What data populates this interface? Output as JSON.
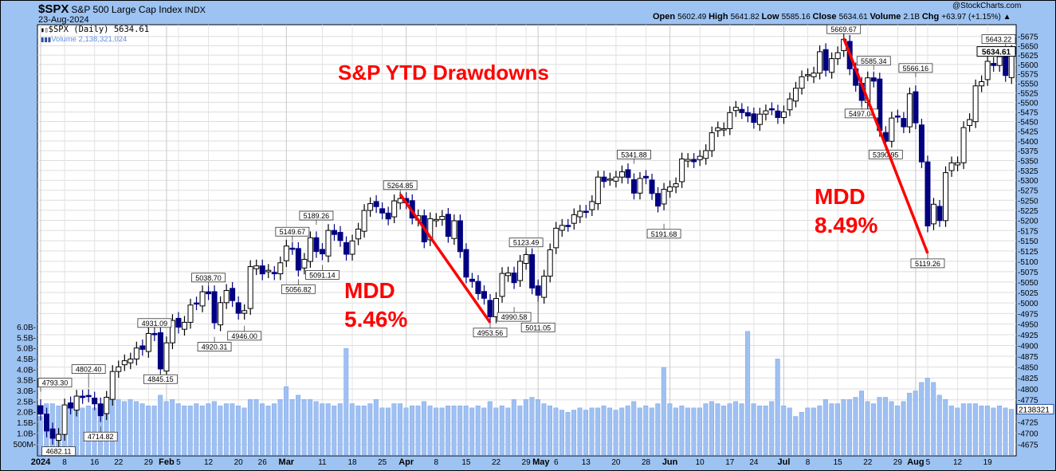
{
  "header": {
    "symbol": "$SPX",
    "name": "S&P 500 Large Cap Index",
    "exchange": "INDX",
    "date": "23-Aug-2024",
    "copyright": "@StockCharts.com",
    "ohlc_line": [
      {
        "label": "Open",
        "value": "5602.49"
      },
      {
        "label": "High",
        "value": "5641.82"
      },
      {
        "label": "Low",
        "value": "5585.16"
      },
      {
        "label": "Close",
        "value": "5634.61"
      },
      {
        "label": "Volume",
        "value": "2.1B"
      },
      {
        "label": "Chg",
        "value": "+63.97 (+1.15%) ▲"
      }
    ],
    "legend_price": "$SPX (Daily) 5634.61",
    "legend_volume": "Volume 2,138,321,024"
  },
  "chart_data": {
    "type": "candlestick",
    "title": "S&P YTD Drawdowns",
    "scale": "log",
    "ylim": [
      4660,
      5690
    ],
    "y_ticks": [
      5675,
      5650,
      5625,
      5600,
      5575,
      5550,
      5525,
      5500,
      5475,
      5450,
      5425,
      5400,
      5375,
      5350,
      5325,
      5300,
      5275,
      5250,
      5225,
      5200,
      5175,
      5150,
      5125,
      5100,
      5075,
      5050,
      5025,
      5000,
      4975,
      4950,
      4925,
      4900,
      4875,
      4850,
      4825,
      4800,
      4775,
      4725,
      4700,
      4675
    ],
    "volume_ticks": [
      {
        "v": 6.0,
        "t": "6.0B"
      },
      {
        "v": 5.5,
        "t": "5.5B"
      },
      {
        "v": 5.0,
        "t": "5.0B"
      },
      {
        "v": 4.5,
        "t": "4.5B"
      },
      {
        "v": 4.0,
        "t": "4.0B"
      },
      {
        "v": 3.5,
        "t": "3.5B"
      },
      {
        "v": 3.0,
        "t": "3.0B"
      },
      {
        "v": 2.5,
        "t": "2.5B"
      },
      {
        "v": 2.0,
        "t": "2.0B"
      },
      {
        "v": 1.5,
        "t": "1.5B"
      },
      {
        "v": 1.0,
        "t": "1.0B"
      },
      {
        "v": 0.5,
        "t": "500M"
      }
    ],
    "last_close_tag": "5634.61",
    "last_volume_tag": "2138321",
    "last_volume_b": 2.14,
    "x_labels": [
      {
        "t": "2024",
        "d": "01-02",
        "b": true
      },
      {
        "t": "8",
        "d": "01-08"
      },
      {
        "t": "16",
        "d": "01-16"
      },
      {
        "t": "22",
        "d": "01-22"
      },
      {
        "t": "29",
        "d": "01-29"
      },
      {
        "t": "Feb",
        "d": "02-01",
        "b": true
      },
      {
        "t": "5",
        "d": "02-05"
      },
      {
        "t": "12",
        "d": "02-12"
      },
      {
        "t": "20",
        "d": "02-20"
      },
      {
        "t": "26",
        "d": "02-26"
      },
      {
        "t": "Mar",
        "d": "03-01",
        "b": true
      },
      {
        "t": "11",
        "d": "03-11"
      },
      {
        "t": "18",
        "d": "03-18"
      },
      {
        "t": "25",
        "d": "03-25"
      },
      {
        "t": "Apr",
        "d": "04-01",
        "b": true
      },
      {
        "t": "8",
        "d": "04-08"
      },
      {
        "t": "15",
        "d": "04-15"
      },
      {
        "t": "22",
        "d": "04-22"
      },
      {
        "t": "29",
        "d": "04-29"
      },
      {
        "t": "May",
        "d": "05-01",
        "b": true
      },
      {
        "t": "6",
        "d": "05-06"
      },
      {
        "t": "13",
        "d": "05-13"
      },
      {
        "t": "20",
        "d": "05-20"
      },
      {
        "t": "28",
        "d": "05-28"
      },
      {
        "t": "Jun",
        "d": "06-03",
        "b": true
      },
      {
        "t": "10",
        "d": "06-10"
      },
      {
        "t": "17",
        "d": "06-17"
      },
      {
        "t": "24",
        "d": "06-24"
      },
      {
        "t": "Jul",
        "d": "07-01",
        "b": true
      },
      {
        "t": "8",
        "d": "07-08"
      },
      {
        "t": "15",
        "d": "07-15"
      },
      {
        "t": "22",
        "d": "07-22"
      },
      {
        "t": "29",
        "d": "07-29"
      },
      {
        "t": "Aug",
        "d": "08-01",
        "b": true
      },
      {
        "t": "5",
        "d": "08-05"
      },
      {
        "t": "12",
        "d": "08-12"
      },
      {
        "t": "19",
        "d": "08-19"
      }
    ],
    "dates": [
      "01-02",
      "01-03",
      "01-04",
      "01-05",
      "01-08",
      "01-09",
      "01-10",
      "01-11",
      "01-12",
      "01-16",
      "01-17",
      "01-18",
      "01-19",
      "01-22",
      "01-23",
      "01-24",
      "01-25",
      "01-26",
      "01-29",
      "01-30",
      "01-31",
      "02-01",
      "02-02",
      "02-05",
      "02-06",
      "02-07",
      "02-08",
      "02-09",
      "02-12",
      "02-13",
      "02-14",
      "02-15",
      "02-16",
      "02-20",
      "02-21",
      "02-22",
      "02-23",
      "02-26",
      "02-27",
      "02-28",
      "02-29",
      "03-01",
      "03-04",
      "03-05",
      "03-06",
      "03-07",
      "03-08",
      "03-11",
      "03-12",
      "03-13",
      "03-14",
      "03-15",
      "03-18",
      "03-19",
      "03-20",
      "03-21",
      "03-22",
      "03-25",
      "03-26",
      "03-27",
      "03-28",
      "04-01",
      "04-02",
      "04-03",
      "04-04",
      "04-05",
      "04-08",
      "04-09",
      "04-10",
      "04-11",
      "04-12",
      "04-15",
      "04-16",
      "04-17",
      "04-18",
      "04-19",
      "04-22",
      "04-23",
      "04-24",
      "04-25",
      "04-26",
      "04-29",
      "04-30",
      "05-01",
      "05-02",
      "05-03",
      "05-06",
      "05-07",
      "05-08",
      "05-09",
      "05-10",
      "05-13",
      "05-14",
      "05-15",
      "05-16",
      "05-17",
      "05-20",
      "05-21",
      "05-22",
      "05-23",
      "05-24",
      "05-28",
      "05-29",
      "05-30",
      "05-31",
      "06-03",
      "06-04",
      "06-05",
      "06-06",
      "06-07",
      "06-10",
      "06-11",
      "06-12",
      "06-13",
      "06-14",
      "06-17",
      "06-18",
      "06-20",
      "06-21",
      "06-24",
      "06-25",
      "06-26",
      "06-27",
      "06-28",
      "07-01",
      "07-02",
      "07-03",
      "07-05",
      "07-08",
      "07-09",
      "07-10",
      "07-11",
      "07-12",
      "07-15",
      "07-16",
      "07-17",
      "07-18",
      "07-19",
      "07-22",
      "07-23",
      "07-24",
      "07-25",
      "07-26",
      "07-29",
      "07-30",
      "07-31",
      "08-01",
      "08-02",
      "08-05",
      "08-06",
      "08-07",
      "08-08",
      "08-09",
      "08-12",
      "08-13",
      "08-14",
      "08-15",
      "08-16",
      "08-19",
      "08-20",
      "08-21",
      "08-22",
      "08-23"
    ],
    "close": [
      4742.83,
      4704.81,
      4688.68,
      4697.24,
      4763.54,
      4756.5,
      4783.45,
      4780.24,
      4783.83,
      4765.98,
      4739.21,
      4780.94,
      4839.81,
      4850.43,
      4864.6,
      4868.55,
      4894.16,
      4890.97,
      4927.93,
      4924.97,
      4845.65,
      4906.19,
      4958.61,
      4942.81,
      4954.23,
      4995.06,
      4997.91,
      5026.61,
      5021.84,
      4953.17,
      5000.62,
      5029.73,
      5005.57,
      4975.51,
      4981.8,
      5087.03,
      5088.8,
      5069.53,
      5078.18,
      5069.76,
      5096.27,
      5137.08,
      5130.95,
      5078.65,
      5104.76,
      5157.36,
      5123.69,
      5117.94,
      5175.27,
      5165.31,
      5150.48,
      5117.09,
      5149.42,
      5178.51,
      5224.62,
      5241.53,
      5234.18,
      5218.19,
      5203.58,
      5248.49,
      5254.35,
      5243.77,
      5205.81,
      5211.49,
      5147.21,
      5204.34,
      5202.39,
      5209.91,
      5160.64,
      5199.06,
      5123.41,
      5061.82,
      5051.41,
      5022.21,
      5011.12,
      4967.23,
      5010.6,
      5070.55,
      5071.63,
      5048.42,
      5099.96,
      5116.17,
      5035.69,
      5018.39,
      5064.2,
      5127.79,
      5180.74,
      5187.7,
      5187.67,
      5214.08,
      5222.68,
      5221.42,
      5246.68,
      5308.15,
      5297.1,
      5303.27,
      5308.13,
      5321.41,
      5307.01,
      5267.84,
      5304.72,
      5306.04,
      5266.95,
      5235.48,
      5277.51,
      5283.4,
      5291.34,
      5354.03,
      5352.96,
      5346.99,
      5360.79,
      5375.32,
      5421.03,
      5433.74,
      5431.6,
      5473.23,
      5487.03,
      5473.17,
      5464.62,
      5447.87,
      5469.3,
      5477.9,
      5482.87,
      5460.48,
      5475.09,
      5509.01,
      5537.02,
      5567.19,
      5572.85,
      5576.98,
      5633.91,
      5584.54,
      5615.35,
      5631.22,
      5667.2,
      5588.27,
      5544.59,
      5505.0,
      5564.41,
      5555.74,
      5427.13,
      5399.22,
      5459.1,
      5463.54,
      5436.44,
      5522.3,
      5446.68,
      5346.56,
      5186.33,
      5240.03,
      5199.5,
      5319.31,
      5344.16,
      5344.39,
      5434.43,
      5455.21,
      5543.22,
      5554.25,
      5608.25,
      5597.12,
      5620.85,
      5570.64,
      5634.61
    ],
    "volume_b": [
      1.8,
      2.4,
      2.4,
      2.3,
      2.2,
      2.3,
      2.2,
      2.2,
      2.3,
      2.2,
      2.2,
      2.2,
      2.7,
      2.6,
      2.5,
      2.6,
      2.5,
      2.4,
      2.3,
      2.3,
      2.8,
      2.5,
      2.6,
      2.4,
      2.3,
      2.3,
      2.4,
      2.3,
      2.4,
      2.5,
      2.3,
      2.4,
      2.4,
      2.3,
      2.2,
      2.6,
      2.6,
      2.4,
      2.3,
      2.4,
      2.6,
      3.2,
      2.6,
      2.8,
      2.6,
      2.6,
      2.5,
      2.4,
      2.4,
      2.3,
      2.4,
      5.0,
      2.4,
      2.3,
      2.3,
      2.4,
      2.6,
      2.2,
      2.2,
      2.4,
      2.4,
      2.2,
      2.3,
      2.3,
      2.5,
      2.3,
      2.2,
      2.2,
      2.3,
      2.3,
      2.3,
      2.3,
      2.2,
      2.3,
      2.2,
      2.5,
      2.2,
      2.3,
      2.2,
      2.6,
      2.3,
      2.6,
      2.7,
      2.6,
      2.4,
      2.3,
      2.2,
      2.1,
      2.0,
      2.1,
      2.2,
      2.1,
      2.2,
      2.2,
      2.3,
      2.2,
      2.1,
      2.2,
      2.3,
      2.5,
      2.2,
      2.3,
      2.2,
      2.4,
      4.1,
      2.4,
      2.2,
      2.3,
      2.2,
      2.2,
      2.2,
      2.4,
      2.5,
      2.4,
      2.3,
      2.4,
      2.5,
      2.4,
      5.8,
      2.4,
      2.3,
      2.3,
      2.5,
      4.5,
      2.3,
      2.2,
      1.8,
      2.0,
      2.2,
      2.2,
      2.3,
      2.6,
      2.4,
      2.4,
      2.6,
      2.6,
      2.7,
      3.0,
      2.5,
      2.4,
      2.7,
      2.7,
      2.5,
      2.3,
      2.5,
      2.9,
      3.0,
      3.4,
      3.6,
      3.4,
      2.8,
      2.6,
      2.3,
      2.2,
      2.4,
      2.4,
      2.4,
      2.3,
      2.3,
      2.2,
      2.3,
      2.2,
      2.14
    ],
    "annotations": [
      {
        "t": "4793.30",
        "d": "01-02",
        "v": 4793.3,
        "pos": "above"
      },
      {
        "t": "4682.11",
        "d": "01-05",
        "v": 4682.11,
        "pos": "below"
      },
      {
        "t": "4802.40",
        "d": "01-12",
        "v": 4802.4,
        "pos": "above"
      },
      {
        "t": "4714.82",
        "d": "01-17",
        "v": 4714.82,
        "pos": "below"
      },
      {
        "t": "4931.09",
        "d": "01-30",
        "v": 4931.09,
        "pos": "above"
      },
      {
        "t": "4845.15",
        "d": "01-31",
        "v": 4845.15,
        "pos": "below"
      },
      {
        "t": "5038.70",
        "d": "02-12",
        "v": 5038.7,
        "pos": "above"
      },
      {
        "t": "4920.31",
        "d": "02-13",
        "v": 4920.31,
        "pos": "below"
      },
      {
        "t": "4946.00",
        "d": "02-21",
        "v": 4946.0,
        "pos": "below"
      },
      {
        "t": "5149.67",
        "d": "03-04",
        "v": 5149.67,
        "pos": "above"
      },
      {
        "t": "5056.82",
        "d": "03-05",
        "v": 5056.82,
        "pos": "below"
      },
      {
        "t": "5189.26",
        "d": "03-08",
        "v": 5189.26,
        "pos": "above"
      },
      {
        "t": "5091.14",
        "d": "03-11",
        "v": 5091.14,
        "pos": "below"
      },
      {
        "t": "5264.85",
        "d": "03-28",
        "v": 5264.85,
        "pos": "above"
      },
      {
        "t": "4953.56",
        "d": "04-19",
        "v": 4953.56,
        "pos": "below"
      },
      {
        "t": "4990.58",
        "d": "04-25",
        "v": 4990.58,
        "pos": "below"
      },
      {
        "t": "5123.49",
        "d": "04-29",
        "v": 5123.49,
        "pos": "above"
      },
      {
        "t": "5011.05",
        "d": "05-01",
        "v": 5011.05,
        "pos": "below"
      },
      {
        "t": "5341.88",
        "d": "05-23",
        "v": 5341.88,
        "pos": "above"
      },
      {
        "t": "5191.68",
        "d": "05-31",
        "v": 5191.68,
        "pos": "below"
      },
      {
        "t": "5669.67",
        "d": "07-16",
        "v": 5669.67,
        "pos": "above"
      },
      {
        "t": "5497.04",
        "d": "07-19",
        "v": 5497.04,
        "pos": "below"
      },
      {
        "t": "5585.34",
        "d": "07-23",
        "v": 5585.34,
        "pos": "above"
      },
      {
        "t": "5390.95",
        "d": "07-25",
        "v": 5390.95,
        "pos": "below"
      },
      {
        "t": "5566.16",
        "d": "08-01",
        "v": 5566.16,
        "pos": "above"
      },
      {
        "t": "5119.26",
        "d": "08-05",
        "v": 5119.26,
        "pos": "below"
      },
      {
        "t": "5643.22",
        "d": "08-22",
        "v": 5643.22,
        "pos": "above"
      }
    ],
    "drawdowns": [
      {
        "from": "03-28",
        "from_v": 5264.85,
        "to": "04-19",
        "to_v": 4953.56,
        "label1": "MDD",
        "label2": "5.46%"
      },
      {
        "from": "07-16",
        "from_v": 5669.67,
        "to": "08-05",
        "to_v": 5119.26,
        "label1": "MDD",
        "label2": "8.49%"
      }
    ],
    "colors": {
      "up": "#000000",
      "down": "#000080",
      "volume": "#9fc0f2",
      "drawdown": "#ff0000",
      "frame": "#9dc3f3"
    }
  }
}
